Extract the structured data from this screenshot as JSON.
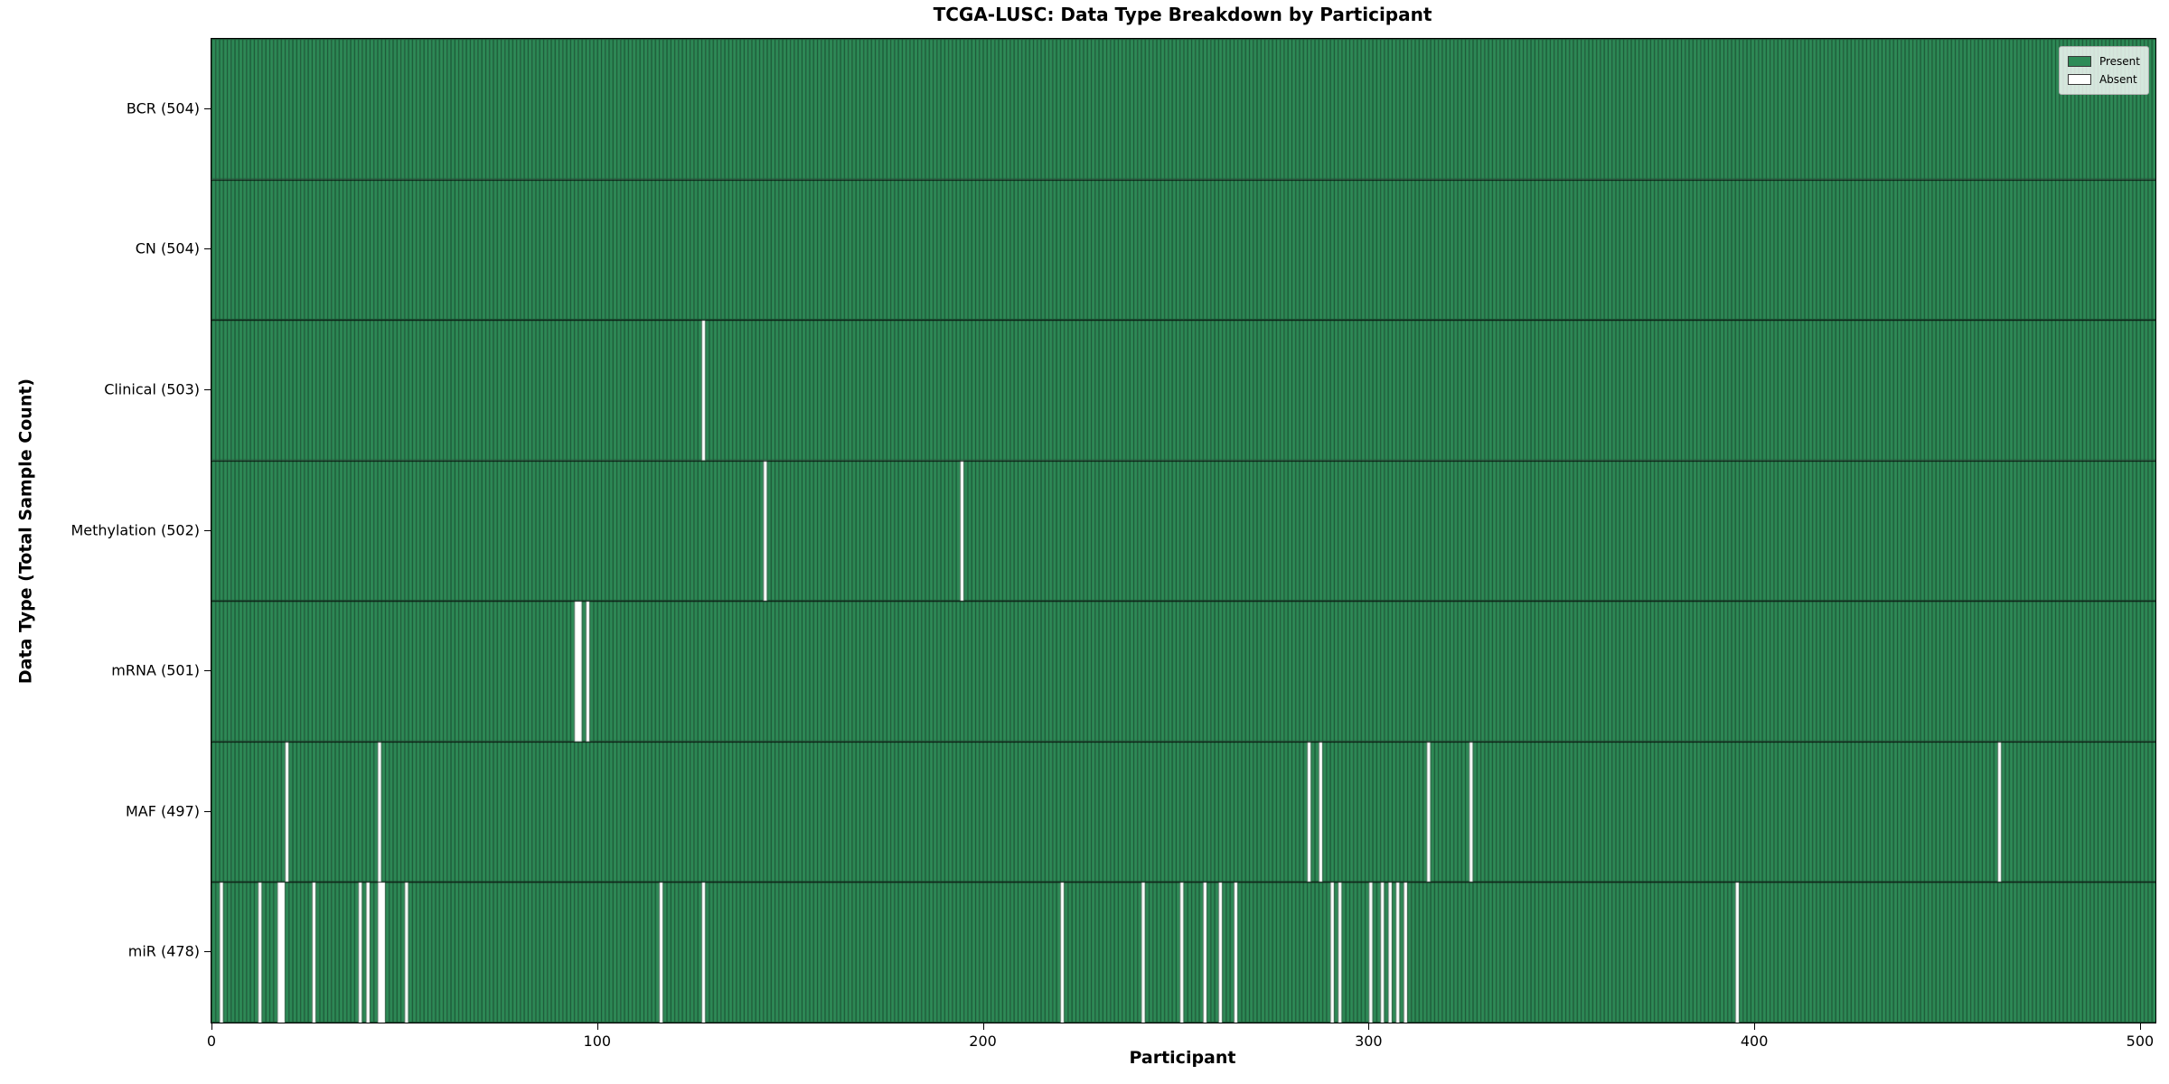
{
  "chart_data": {
    "type": "heatmap",
    "title": "TCGA-LUSC: Data Type Breakdown by Participant",
    "xlabel": "Participant",
    "ylabel": "Data Type (Total Sample Count)",
    "n_participants": 504,
    "x_ticks": [
      0,
      100,
      200,
      300,
      400,
      500
    ],
    "xlim": [
      0,
      504
    ],
    "legend_position": "upper right",
    "grid": false,
    "colors": {
      "present": "#2e8b57",
      "absent": "#ffffff",
      "bar_edge": "rgba(0,0,0,0.45)",
      "row_separator": "rgba(0,0,0,0.8)"
    },
    "legend": [
      {
        "label": "Present",
        "color": "#2e8b57"
      },
      {
        "label": "Absent",
        "color": "#ffffff"
      }
    ],
    "rows": [
      {
        "label": "BCR",
        "count": 504,
        "absent_participants": []
      },
      {
        "label": "CN",
        "count": 504,
        "absent_participants": []
      },
      {
        "label": "Clinical",
        "count": 503,
        "absent_participants": [
          128
        ]
      },
      {
        "label": "Methylation",
        "count": 502,
        "absent_participants": [
          144,
          195
        ]
      },
      {
        "label": "mRNA",
        "count": 501,
        "absent_participants": [
          95,
          96,
          98
        ]
      },
      {
        "label": "MAF",
        "count": 497,
        "absent_participants": [
          20,
          44,
          285,
          288,
          316,
          327,
          464
        ]
      },
      {
        "label": "miR",
        "count": 478,
        "absent_participants": [
          3,
          13,
          18,
          19,
          27,
          39,
          41,
          44,
          45,
          51,
          117,
          128,
          221,
          242,
          252,
          258,
          262,
          266,
          291,
          293,
          301,
          304,
          306,
          308,
          310,
          396
        ]
      }
    ],
    "ytick_label_format": "{label} ({count})"
  }
}
